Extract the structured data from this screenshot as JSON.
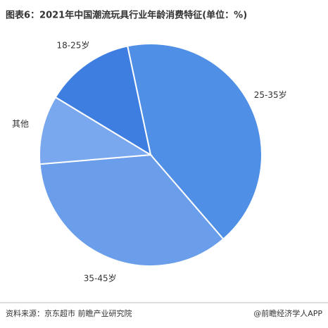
{
  "chart_data": {
    "type": "pie",
    "title": "图表6：2021年中国潮流玩具行业年龄消费特征(单位：%)",
    "categories": [
      "25-35岁",
      "35-45岁",
      "其他",
      "18-25岁"
    ],
    "values": [
      42,
      35,
      10,
      13
    ],
    "colors": [
      "#4f8fe6",
      "#6a9eea",
      "#7aa8ee",
      "#3e7ee0"
    ],
    "source": "资料来源：京东超市 前瞻产业研究院",
    "credit": "@前瞻经济学人APP"
  }
}
